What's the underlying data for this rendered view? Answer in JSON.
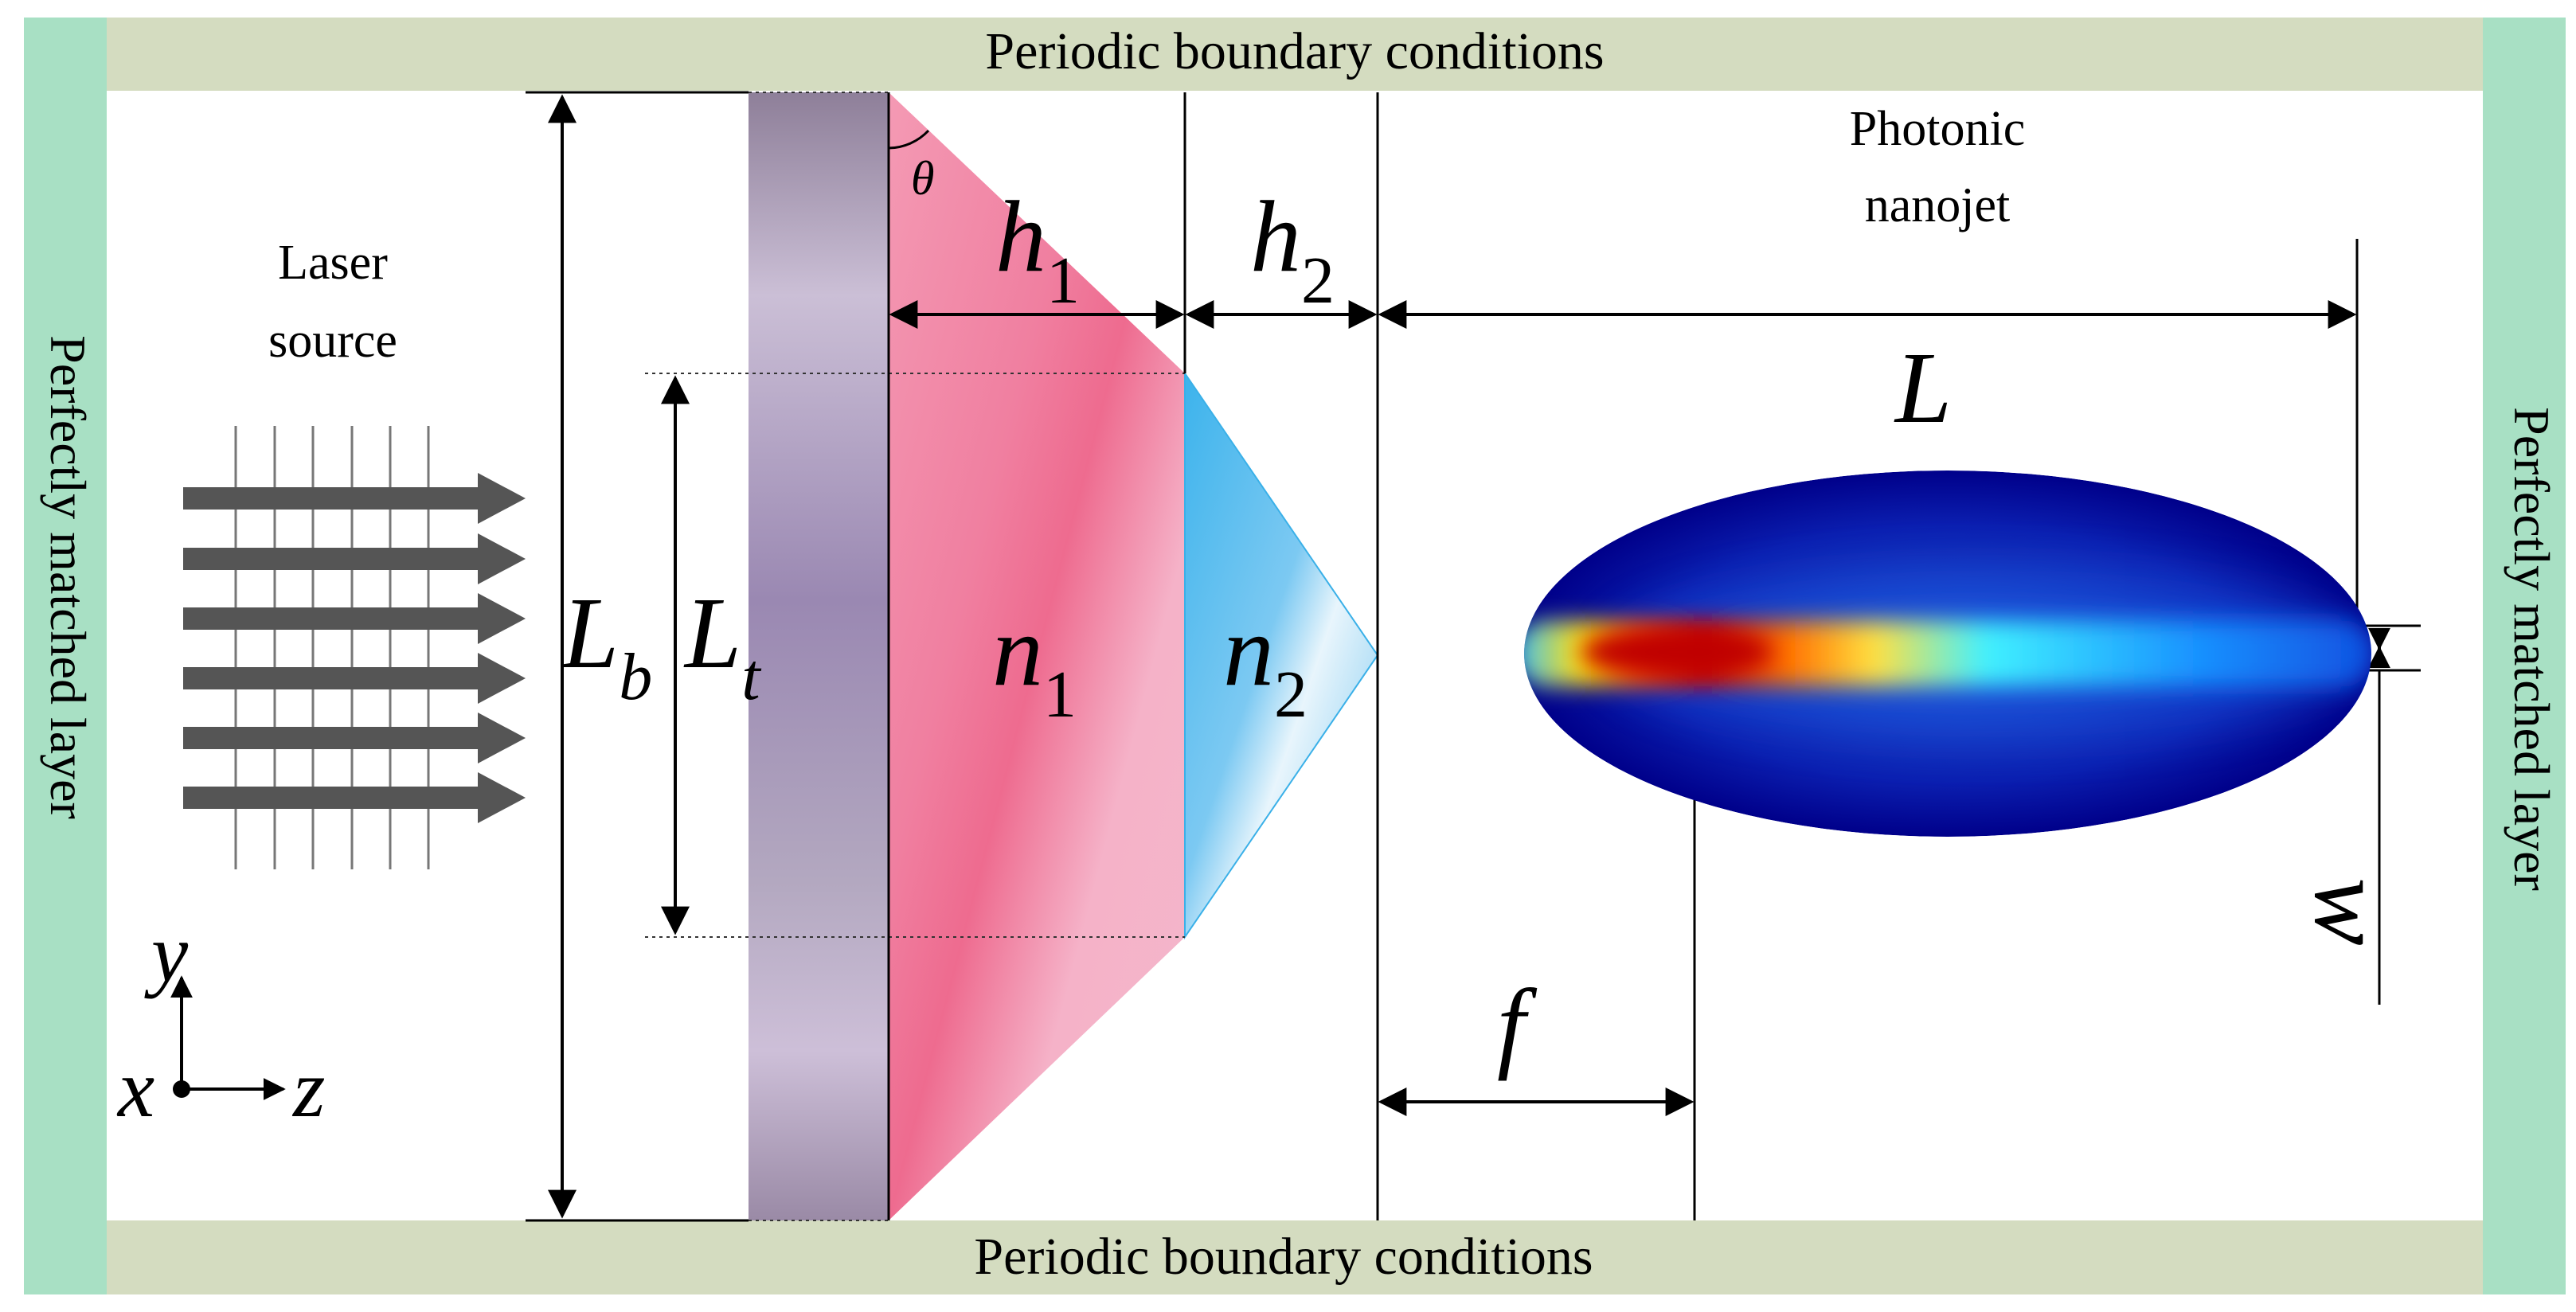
{
  "boundaries": {
    "top": "Periodic boundary conditions",
    "bottom": "Periodic boundary conditions",
    "left": "Perfectly matched layer",
    "right": "Perfectly matched layer"
  },
  "source": {
    "line1": "Laser",
    "line2": "source"
  },
  "jet": {
    "line1": "Photonic",
    "line2": "nanojet"
  },
  "symbols": {
    "theta": "θ",
    "h1": {
      "base": "h",
      "sub": "1"
    },
    "h2": {
      "base": "h",
      "sub": "2"
    },
    "L": "L",
    "Lb": {
      "base": "L",
      "sub": "b"
    },
    "Lt": {
      "base": "L",
      "sub": "t"
    },
    "n1": {
      "base": "n",
      "sub": "1"
    },
    "n2": {
      "base": "n",
      "sub": "2"
    },
    "f": "f",
    "w": "w"
  },
  "axes": {
    "y": "y",
    "x": "x",
    "z": "z"
  },
  "colors": {
    "pml": "#a8e0c4",
    "periodic": "#d4dcc0",
    "substrate": "#a99ab5",
    "lens1": "#f07fa0",
    "lens2": "#5bb8ee",
    "arrows": "#555555",
    "jet_outer": "#0a0a8c",
    "jet_core": "#d40000"
  }
}
